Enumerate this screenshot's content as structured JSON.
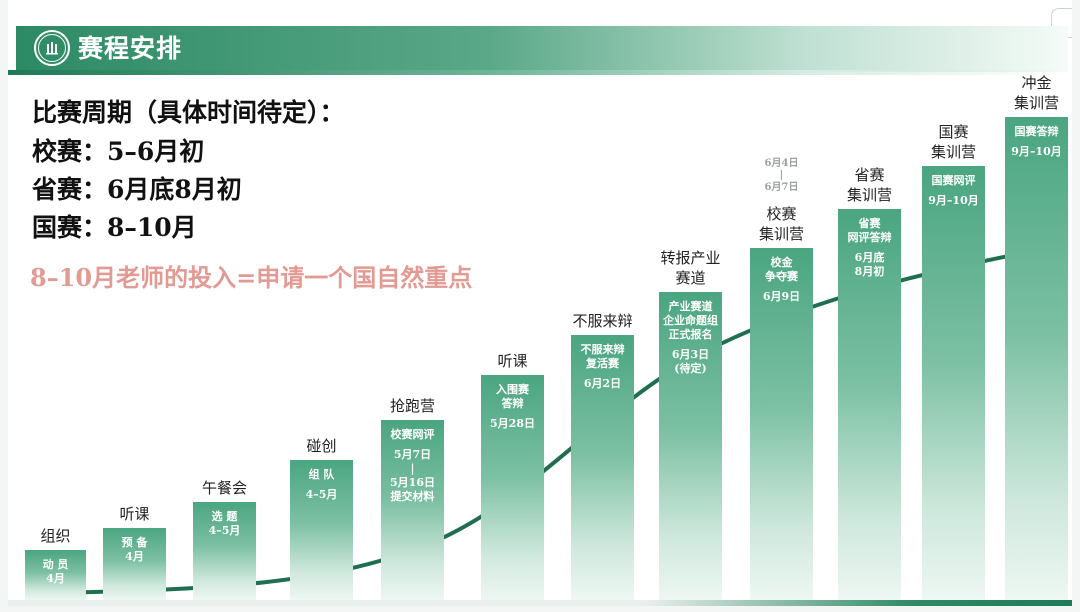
{
  "header": {
    "title": "赛程安排",
    "logo_icon": "university-seal-icon",
    "logo_text": "校徽"
  },
  "info": {
    "period_title": "比赛周期（具体时间待定）：",
    "school": "校赛：5–6月初",
    "province": "省赛：6月底8月初",
    "national": "国赛：8–10月",
    "note": "8–10月老师的投入=申请一个国自然重点"
  },
  "colors": {
    "brand_green": "#2d8a65",
    "note_pink": "#e29a93",
    "bar_top": "#5cae8c",
    "bar_bottom": "#e4f1eb",
    "curve": "#1f6e4f"
  },
  "stages": [
    {
      "label": [
        "组织"
      ],
      "inner": [
        "动 员",
        "4月"
      ]
    },
    {
      "label": [
        "听课"
      ],
      "inner": [
        "预  备",
        "4月"
      ]
    },
    {
      "label": [
        "午餐会"
      ],
      "inner": [
        "选  题",
        "4–5月"
      ]
    },
    {
      "label": [
        "碰创"
      ],
      "inner": [
        "组  队",
        "",
        "4–5月"
      ]
    },
    {
      "label": [
        "抢跑营"
      ],
      "inner": [
        "校赛网评",
        "",
        "5月7日",
        "|",
        "5月16日",
        "提交材料"
      ]
    },
    {
      "label": [
        "听课"
      ],
      "inner": [
        "入围赛",
        "答辩",
        "",
        "5月28日"
      ]
    },
    {
      "label": [
        "不服来辩"
      ],
      "inner": [
        "不服来辩",
        "复活赛",
        "",
        "6月2日"
      ]
    },
    {
      "label": [
        "转报产业",
        "赛道"
      ],
      "inner": [
        "产业赛道",
        "企业命题组",
        "正式报名",
        "",
        "6月3日",
        "(待定)"
      ]
    },
    {
      "label": [
        "校赛",
        "集训营"
      ],
      "top_date": [
        "6月4日",
        "|",
        "6月7日"
      ],
      "inner": [
        "校金",
        "争夺赛",
        "",
        "6月9日"
      ]
    },
    {
      "label": [
        "省赛",
        "集训营"
      ],
      "inner": [
        "省赛",
        "网评答辩",
        "",
        "6月底",
        "8月初"
      ]
    },
    {
      "label": [
        "国赛",
        "集训营"
      ],
      "inner": [
        "国赛网评",
        "",
        "9月–10月"
      ]
    },
    {
      "label": [
        "冲金",
        "集训营"
      ],
      "inner": [
        "国赛答辩",
        "",
        "9月–10月"
      ]
    }
  ]
}
